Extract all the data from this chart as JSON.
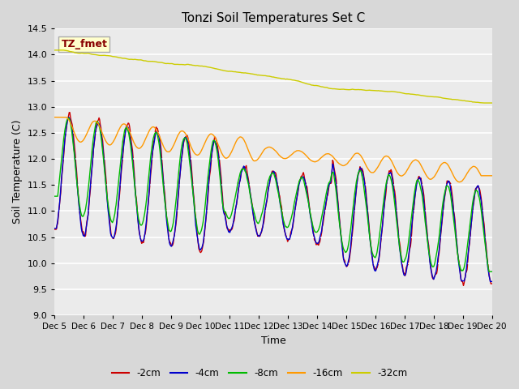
{
  "title": "Tonzi Soil Temperatures Set C",
  "xlabel": "Time",
  "ylabel": "Soil Temperature (C)",
  "ylim": [
    9.0,
    14.5
  ],
  "yticks": [
    9.0,
    9.5,
    10.0,
    10.5,
    11.0,
    11.5,
    12.0,
    12.5,
    13.0,
    13.5,
    14.0,
    14.5
  ],
  "colors": {
    "-2cm": "#cc0000",
    "-4cm": "#0000cc",
    "-8cm": "#00bb00",
    "-16cm": "#ff9900",
    "-32cm": "#cccc00"
  },
  "legend_label": "TZ_fmet",
  "legend_box_facecolor": "#ffffcc",
  "legend_box_edgecolor": "#aaaaaa",
  "legend_text_color": "#880000",
  "fig_facecolor": "#d8d8d8",
  "ax_facecolor": "#ebebeb",
  "n_points": 720,
  "x_start": 5.0,
  "x_end": 20.0,
  "xtick_labels": [
    "Dec 5",
    "Dec 6",
    "Dec 7",
    "Dec 8",
    "Dec 9",
    "Dec 10",
    "Dec 11",
    "Dec 12",
    "Dec 13",
    "Dec 14",
    "Dec 15",
    "Dec 16",
    "Dec 17",
    "Dec 18",
    "Dec 19",
    "Dec 20"
  ],
  "xtick_positions": [
    5,
    6,
    7,
    8,
    9,
    10,
    11,
    12,
    13,
    14,
    15,
    16,
    17,
    18,
    19,
    20
  ]
}
